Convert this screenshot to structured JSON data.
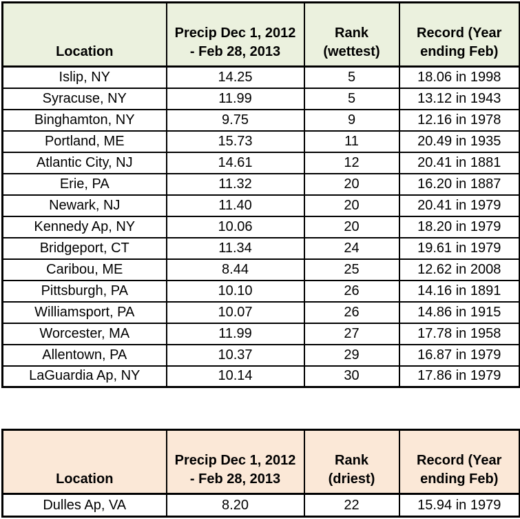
{
  "colors": {
    "wettest_header_bg": "#EBF1DE",
    "driest_header_bg": "#FBE8D7",
    "border": "#000000",
    "text": "#000000",
    "row_bg": "#FFFFFF"
  },
  "headers": {
    "wettest": {
      "location": "Location",
      "precip": [
        "Precip Dec 1, 2012",
        "- Feb 28, 2013"
      ],
      "rank": [
        "Rank",
        "(wettest)"
      ],
      "record": [
        "Record (Year",
        "ending Feb)"
      ]
    },
    "driest": {
      "location": "Location",
      "precip": [
        "Precip Dec 1, 2012",
        "- Feb 28, 2013"
      ],
      "rank": [
        "Rank",
        "(driest)"
      ],
      "record": [
        "Record (Year",
        "ending Feb)"
      ]
    }
  },
  "chart_data": [
    {
      "type": "table",
      "title": "Wettest rankings, precipitation Dec 1, 2012 - Feb 28, 2013",
      "columns": [
        "Location",
        "Precip Dec 1, 2012 - Feb 28, 2013",
        "Rank (wettest)",
        "Record (Year ending Feb)"
      ],
      "rows": [
        [
          "Islip, NY",
          "14.25",
          "5",
          "18.06 in 1998"
        ],
        [
          "Syracuse, NY",
          "11.99",
          "5",
          "13.12 in 1943"
        ],
        [
          "Binghamton, NY",
          "9.75",
          "9",
          "12.16 in 1978"
        ],
        [
          "Portland, ME",
          "15.73",
          "11",
          "20.49 in 1935"
        ],
        [
          "Atlantic City, NJ",
          "14.61",
          "12",
          "20.41 in 1881"
        ],
        [
          "Erie, PA",
          "11.32",
          "20",
          "16.20 in 1887"
        ],
        [
          "Newark, NJ",
          "11.40",
          "20",
          "20.41 in 1979"
        ],
        [
          "Kennedy Ap, NY",
          "10.06",
          "20",
          "18.20 in 1979"
        ],
        [
          "Bridgeport, CT",
          "11.34",
          "24",
          "19.61 in 1979"
        ],
        [
          "Caribou, ME",
          "8.44",
          "25",
          "12.62 in 2008"
        ],
        [
          "Pittsburgh, PA",
          "10.10",
          "26",
          "14.16 in 1891"
        ],
        [
          "Williamsport, PA",
          "10.07",
          "26",
          "14.86 in 1915"
        ],
        [
          "Worcester, MA",
          "11.99",
          "27",
          "17.78 in 1958"
        ],
        [
          "Allentown, PA",
          "10.37",
          "29",
          "16.87 in 1979"
        ],
        [
          "LaGuardia Ap, NY",
          "10.14",
          "30",
          "17.86 in 1979"
        ]
      ]
    },
    {
      "type": "table",
      "title": "Driest rankings, precipitation Dec 1, 2012 - Feb 28, 2013",
      "columns": [
        "Location",
        "Precip Dec 1, 2012 - Feb 28, 2013",
        "Rank (driest)",
        "Record (Year ending Feb)"
      ],
      "rows": [
        [
          "Dulles Ap, VA",
          "8.20",
          "22",
          "15.94 in 1979"
        ]
      ]
    }
  ]
}
